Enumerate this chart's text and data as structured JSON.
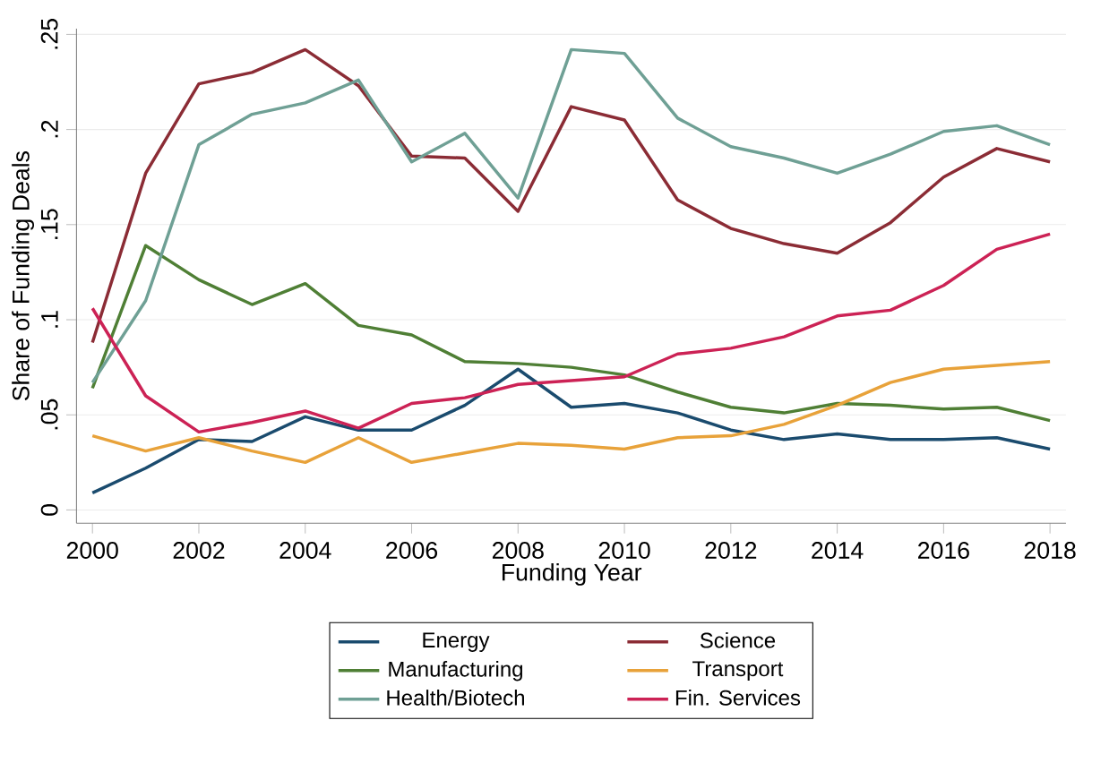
{
  "chart_data": {
    "type": "line",
    "xlabel": "Funding Year",
    "ylabel": "Share of Funding Deals",
    "x": [
      2000,
      2001,
      2002,
      2003,
      2004,
      2005,
      2006,
      2007,
      2008,
      2009,
      2010,
      2011,
      2012,
      2013,
      2014,
      2015,
      2016,
      2017,
      2018
    ],
    "xlim": [
      1999.7,
      2018.3
    ],
    "xticks": [
      2000,
      2002,
      2004,
      2006,
      2008,
      2010,
      2012,
      2014,
      2016,
      2018
    ],
    "ylim": [
      -0.007,
      0.253
    ],
    "yticks": [
      0,
      {
        "value": 0.05,
        "label": ".05"
      },
      {
        "value": 0.1,
        "label": ".1"
      },
      {
        "value": 0.15,
        "label": ".15"
      },
      {
        "value": 0.2,
        "label": ".2"
      },
      {
        "value": 0.25,
        "label": ".25"
      }
    ],
    "grid": "y",
    "legend": "bottom",
    "marker": "none",
    "line_style": "solid",
    "series": [
      {
        "name": "Energy",
        "color": "#1a4b6e",
        "values": [
          0.009,
          0.022,
          0.037,
          0.036,
          0.049,
          0.042,
          0.042,
          0.055,
          0.074,
          0.054,
          0.056,
          0.051,
          0.042,
          0.037,
          0.04,
          0.037,
          0.037,
          0.038,
          0.032
        ]
      },
      {
        "name": "Science",
        "color": "#8b2c35",
        "values": [
          0.088,
          0.177,
          0.224,
          0.23,
          0.242,
          0.223,
          0.186,
          0.185,
          0.157,
          0.212,
          0.205,
          0.163,
          0.148,
          0.14,
          0.135,
          0.151,
          0.175,
          0.19,
          0.183
        ]
      },
      {
        "name": "Manufacturing",
        "color": "#4f7f35",
        "values": [
          0.064,
          0.139,
          0.121,
          0.108,
          0.119,
          0.097,
          0.092,
          0.078,
          0.077,
          0.075,
          0.071,
          0.062,
          0.054,
          0.051,
          0.056,
          0.055,
          0.053,
          0.054,
          0.047
        ]
      },
      {
        "name": "Transport",
        "color": "#e8a23a",
        "values": [
          0.039,
          0.031,
          0.038,
          0.031,
          0.025,
          0.038,
          0.025,
          0.03,
          0.035,
          0.034,
          0.032,
          0.038,
          0.039,
          0.045,
          0.055,
          0.067,
          0.074,
          0.076,
          0.078
        ]
      },
      {
        "name": "Health/Biotech",
        "color": "#6fa095",
        "values": [
          0.067,
          0.11,
          0.192,
          0.208,
          0.214,
          0.226,
          0.183,
          0.198,
          0.164,
          0.242,
          0.24,
          0.206,
          0.191,
          0.185,
          0.177,
          0.187,
          0.199,
          0.202,
          0.192
        ]
      },
      {
        "name": "Fin. Services",
        "color": "#cc2255",
        "values": [
          0.106,
          0.06,
          0.041,
          0.046,
          0.052,
          0.043,
          0.056,
          0.059,
          0.066,
          0.068,
          0.07,
          0.082,
          0.085,
          0.091,
          0.102,
          0.105,
          0.118,
          0.137,
          0.145
        ]
      }
    ]
  }
}
